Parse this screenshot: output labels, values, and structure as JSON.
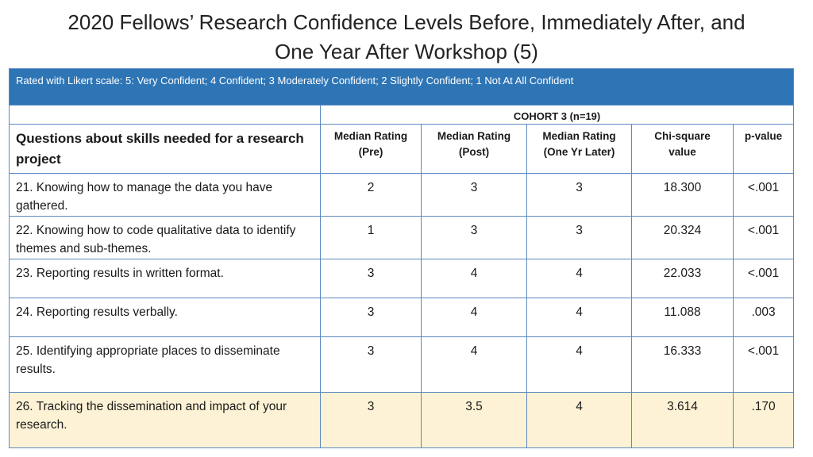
{
  "title": {
    "line1": "2020 Fellows’ Research Confidence Levels Before, Immediately After, and",
    "line2": "One Year After  Workshop (5)"
  },
  "banner": "Rated with Likert scale: 5: Very Confident; 4 Confident; 3 Moderately Confident; 2 Slightly Confident; 1 Not At All Confident",
  "cohort_label": "COHORT 3 (n=19)",
  "question_header": "Questions about skills needed for a research project",
  "columns": [
    {
      "line1": "Median Rating",
      "line2": "(Pre)"
    },
    {
      "line1": "Median Rating",
      "line2": "(Post)"
    },
    {
      "line1": "Median Rating",
      "line2": "(One Yr Later)"
    },
    {
      "line1": "Chi-square",
      "line2": "value"
    },
    {
      "line1": "p-value",
      "line2": ""
    }
  ],
  "rows": [
    {
      "question": "21. Knowing how to manage the data you have gathered.",
      "pre": "2",
      "post": "3",
      "one_yr": "3",
      "chi": "18.300",
      "p": "<.001"
    },
    {
      "question": "22. Knowing how to code qualitative data to identify themes and sub-themes.",
      "pre": "1",
      "post": "3",
      "one_yr": "3",
      "chi": "20.324",
      "p": "<.001"
    },
    {
      "question": "23. Reporting results in written format.",
      "pre": "3",
      "post": "4",
      "one_yr": "4",
      "chi": "22.033",
      "p": "<.001"
    },
    {
      "question": "24. Reporting results verbally.",
      "pre": "3",
      "post": "4",
      "one_yr": "4",
      "chi": "11.088",
      "p": ".003"
    },
    {
      "question": "25. Identifying appropriate places to disseminate results.",
      "pre": "3",
      "post": "4",
      "one_yr": "4",
      "chi": "16.333",
      "p": "<.001"
    },
    {
      "question": "26. Tracking the dissemination and impact of your research.",
      "pre": "3",
      "post": "3.5",
      "one_yr": "4",
      "chi": "3.614",
      "p": ".170"
    }
  ],
  "colors": {
    "banner_bg": "#2e75b6",
    "grid_line": "#5b8ac1",
    "highlight_row_bg": "#fdf2d5"
  }
}
